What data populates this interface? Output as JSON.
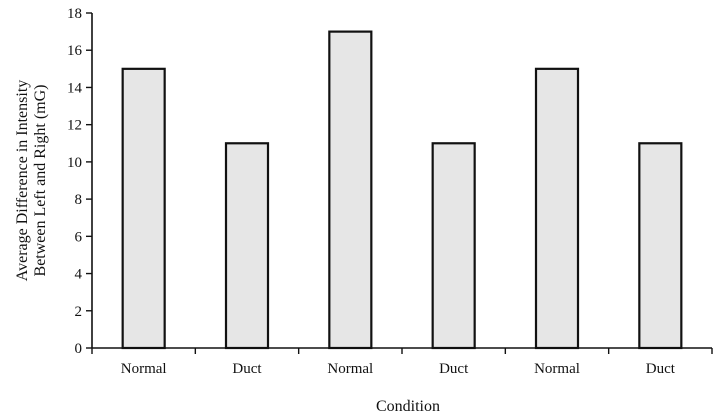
{
  "chart_data": {
    "type": "bar",
    "categories": [
      "Normal",
      "Duct",
      "Normal",
      "Duct",
      "Normal",
      "Duct"
    ],
    "values": [
      15,
      11,
      17,
      11,
      15,
      11
    ],
    "title": "",
    "xlabel": "Condition",
    "ylabel_lines": [
      "Average Difference in Intensity",
      "Between Left and Right (mG)"
    ],
    "ylim": [
      0,
      18
    ],
    "yticks": [
      0,
      2,
      4,
      6,
      8,
      10,
      12,
      14,
      16,
      18
    ],
    "grid": false,
    "legend": "none",
    "colors": {
      "bar_fill": "#e6e6e6",
      "bar_stroke": "#111111",
      "axis": "#111111"
    }
  }
}
